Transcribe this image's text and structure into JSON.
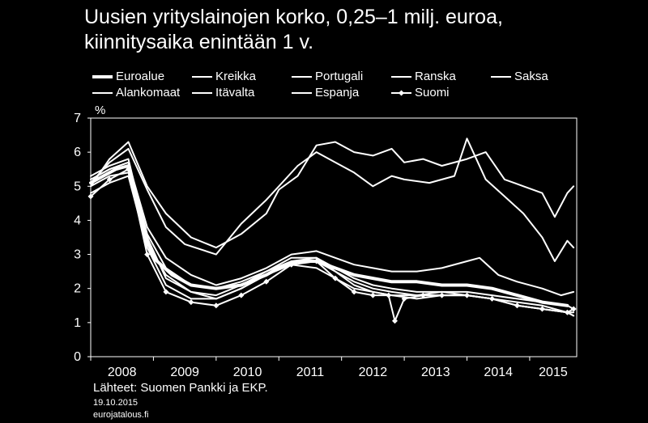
{
  "chart_data": {
    "type": "line",
    "title": "Uusien yrityslainojen korko, 0,25–1 milj. euroa,\nkiinnitysaika enintään 1 v.",
    "ylabel": "%",
    "ylim": [
      0,
      7
    ],
    "yticks": [
      0,
      1,
      2,
      3,
      4,
      5,
      6,
      7
    ],
    "xlim": [
      2008.0,
      2015.75
    ],
    "xticks": [
      "2008",
      "2009",
      "2010",
      "2011",
      "2012",
      "2013",
      "2014",
      "2015"
    ],
    "grid": false,
    "legend_position": "top",
    "series": [
      {
        "name": "Euroalue",
        "style": "thick",
        "x": [
          2008.0,
          2008.2,
          2008.4,
          2008.6,
          2008.8,
          2009.0,
          2009.3,
          2009.6,
          2010.0,
          2010.4,
          2010.8,
          2011.0,
          2011.3,
          2011.6,
          2011.9,
          2012.2,
          2012.5,
          2012.8,
          2013.2,
          2013.6,
          2014.0,
          2014.4,
          2014.8,
          2015.2,
          2015.6
        ],
        "values": [
          5.1,
          5.3,
          5.5,
          5.6,
          4.0,
          2.9,
          2.4,
          2.1,
          2.0,
          2.1,
          2.4,
          2.6,
          2.8,
          2.8,
          2.6,
          2.4,
          2.3,
          2.2,
          2.2,
          2.1,
          2.1,
          2.0,
          1.8,
          1.6,
          1.5
        ]
      },
      {
        "name": "Kreikka",
        "style": "thin",
        "x": [
          2008.0,
          2008.3,
          2008.6,
          2008.9,
          2009.2,
          2009.6,
          2010.0,
          2010.4,
          2010.8,
          2011.0,
          2011.3,
          2011.6,
          2011.9,
          2012.2,
          2012.5,
          2012.8,
          2013.0,
          2013.3,
          2013.6,
          2014.0,
          2014.3,
          2014.6,
          2014.9,
          2015.2,
          2015.4,
          2015.6,
          2015.7
        ],
        "values": [
          5.0,
          5.8,
          6.3,
          5.0,
          4.2,
          3.5,
          3.2,
          3.6,
          4.2,
          4.9,
          5.3,
          6.2,
          6.3,
          6.0,
          5.9,
          6.1,
          5.7,
          5.8,
          5.6,
          5.8,
          6.0,
          5.2,
          5.0,
          4.8,
          4.1,
          4.8,
          5.0
        ]
      },
      {
        "name": "Portugali",
        "style": "thin",
        "x": [
          2008.0,
          2008.3,
          2008.6,
          2008.9,
          2009.2,
          2009.5,
          2010.0,
          2010.4,
          2010.8,
          2011.0,
          2011.3,
          2011.6,
          2011.9,
          2012.2,
          2012.5,
          2012.8,
          2013.0,
          2013.4,
          2013.8,
          2014.0,
          2014.3,
          2014.6,
          2014.9,
          2015.2,
          2015.4,
          2015.6,
          2015.7
        ],
        "values": [
          5.1,
          5.7,
          6.1,
          4.9,
          3.8,
          3.3,
          3.0,
          3.9,
          4.6,
          5.0,
          5.6,
          6.0,
          5.7,
          5.4,
          5.0,
          5.3,
          5.2,
          5.1,
          5.3,
          6.4,
          5.2,
          4.7,
          4.2,
          3.5,
          2.8,
          3.4,
          3.2
        ]
      },
      {
        "name": "Ranska",
        "style": "thin",
        "x": [
          2008.0,
          2008.3,
          2008.6,
          2008.9,
          2009.2,
          2009.6,
          2010.0,
          2010.4,
          2010.8,
          2011.2,
          2011.6,
          2011.9,
          2012.2,
          2012.5,
          2012.8,
          2013.2,
          2013.6,
          2014.0,
          2014.4,
          2014.8,
          2015.2,
          2015.6,
          2015.7
        ],
        "values": [
          4.8,
          5.1,
          5.3,
          3.2,
          2.1,
          1.7,
          1.7,
          2.0,
          2.4,
          2.7,
          2.6,
          2.3,
          2.0,
          1.9,
          1.8,
          1.8,
          1.9,
          1.8,
          1.7,
          1.6,
          1.5,
          1.3,
          1.2
        ]
      },
      {
        "name": "Saksa",
        "style": "thin",
        "x": [
          2008.0,
          2008.3,
          2008.6,
          2008.9,
          2009.2,
          2009.6,
          2010.0,
          2010.4,
          2010.8,
          2011.2,
          2011.6,
          2011.9,
          2012.2,
          2012.5,
          2012.8,
          2013.2,
          2013.6,
          2014.0,
          2014.4,
          2014.8,
          2015.2,
          2015.6,
          2015.7
        ],
        "values": [
          5.2,
          5.5,
          5.7,
          3.6,
          2.6,
          2.1,
          2.0,
          2.2,
          2.5,
          2.9,
          2.9,
          2.6,
          2.3,
          2.1,
          2.0,
          1.9,
          1.9,
          1.9,
          1.8,
          1.7,
          1.6,
          1.5,
          1.4
        ]
      },
      {
        "name": "Alankomaat",
        "style": "thin",
        "x": [
          2008.0,
          2008.3,
          2008.6,
          2008.9,
          2009.2,
          2009.6,
          2010.0,
          2010.4,
          2010.8,
          2011.2,
          2011.6,
          2011.9,
          2012.2,
          2012.5,
          2012.8,
          2013.2,
          2013.6,
          2014.0,
          2014.4,
          2014.8,
          2015.2,
          2015.6,
          2015.7
        ],
        "values": [
          5.3,
          5.6,
          5.8,
          3.5,
          2.3,
          1.9,
          1.8,
          2.1,
          2.5,
          2.8,
          2.9,
          2.5,
          2.2,
          2.0,
          1.9,
          1.8,
          1.8,
          1.8,
          1.7,
          1.5,
          1.4,
          1.3,
          1.3
        ]
      },
      {
        "name": "Itävalta",
        "style": "thin",
        "x": [
          2008.0,
          2008.3,
          2008.6,
          2008.9,
          2009.2,
          2009.6,
          2010.0,
          2010.4,
          2010.8,
          2011.2,
          2011.6,
          2011.9,
          2012.2,
          2012.5,
          2012.8,
          2013.2,
          2013.6,
          2014.0,
          2014.4,
          2014.8,
          2015.2,
          2015.6,
          2015.7
        ],
        "values": [
          5.0,
          5.3,
          5.4,
          3.3,
          2.4,
          1.9,
          1.7,
          2.0,
          2.4,
          2.8,
          2.8,
          2.5,
          2.1,
          1.9,
          1.8,
          1.7,
          1.8,
          1.8,
          1.7,
          1.5,
          1.4,
          1.3,
          1.2
        ]
      },
      {
        "name": "Espanja",
        "style": "thin",
        "x": [
          2008.0,
          2008.3,
          2008.6,
          2008.9,
          2009.2,
          2009.6,
          2010.0,
          2010.4,
          2010.8,
          2011.2,
          2011.6,
          2011.9,
          2012.2,
          2012.5,
          2012.8,
          2013.2,
          2013.6,
          2014.0,
          2014.2,
          2014.5,
          2014.8,
          2015.2,
          2015.5,
          2015.7
        ],
        "values": [
          5.2,
          5.5,
          5.7,
          3.8,
          2.9,
          2.4,
          2.1,
          2.3,
          2.6,
          3.0,
          3.1,
          2.9,
          2.7,
          2.6,
          2.5,
          2.5,
          2.6,
          2.8,
          2.9,
          2.4,
          2.2,
          2.0,
          1.8,
          1.9
        ]
      },
      {
        "name": "Suomi",
        "style": "marker",
        "x": [
          2008.0,
          2008.3,
          2008.6,
          2008.9,
          2009.2,
          2009.6,
          2010.0,
          2010.4,
          2010.8,
          2011.2,
          2011.6,
          2011.9,
          2012.2,
          2012.5,
          2012.75,
          2012.85,
          2013.0,
          2013.3,
          2013.6,
          2014.0,
          2014.4,
          2014.8,
          2015.2,
          2015.6,
          2015.7
        ],
        "values": [
          4.7,
          5.2,
          5.5,
          3.0,
          1.9,
          1.6,
          1.5,
          1.8,
          2.2,
          2.7,
          2.8,
          2.3,
          1.9,
          1.8,
          1.8,
          1.05,
          1.7,
          1.8,
          1.8,
          1.8,
          1.7,
          1.5,
          1.4,
          1.3,
          1.4
        ]
      }
    ]
  },
  "footer": {
    "source": "Lähteet: Suomen Pankki ja EKP.",
    "date": "19.10.2015",
    "site": "eurojatalous.fi"
  }
}
